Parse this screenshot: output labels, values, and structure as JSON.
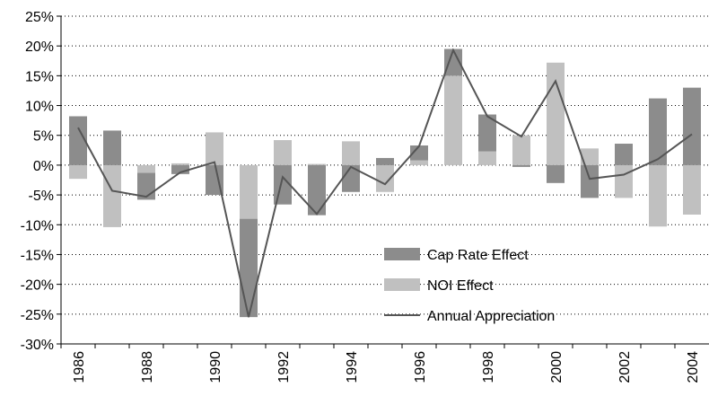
{
  "chart_data": {
    "type": "bar",
    "categories": [
      "1986",
      null,
      "1988",
      null,
      "1990",
      null,
      "1992",
      null,
      "1994",
      null,
      "1996",
      null,
      "1998",
      null,
      "2000",
      null,
      "2002",
      null,
      "2004"
    ],
    "stacked": true,
    "series": [
      {
        "name": "NOI Effect",
        "color": "#c0c0c0",
        "values": [
          -2.3,
          -10.4,
          -1.3,
          0.3,
          5.5,
          -9,
          4.2,
          0.2,
          4,
          -4.5,
          0.8,
          15,
          2.3,
          5,
          17.2,
          2.8,
          -5.5,
          -10.3,
          -8.3
        ]
      },
      {
        "name": "Cap Rate Effect",
        "color": "#8c8c8c",
        "values": [
          8.2,
          5.8,
          -4.5,
          -1.5,
          -5,
          -16.5,
          -6.6,
          -8.4,
          -4.5,
          1.2,
          2.5,
          4.5,
          6.2,
          -0.3,
          -3,
          -5.5,
          3.6,
          11.2,
          13
        ]
      },
      {
        "name": "Annual Appreciation",
        "type": "line",
        "color": "#555555",
        "values": [
          6.3,
          -4.3,
          -5.3,
          -1.2,
          0.5,
          -25.5,
          -2,
          -8.2,
          -0.3,
          -3.2,
          3.2,
          19.3,
          8.2,
          4.8,
          14.1,
          -2.3,
          -1.6,
          1,
          5.2
        ]
      }
    ],
    "legend_order": [
      1,
      0,
      2
    ],
    "ylim": [
      -30,
      25
    ],
    "yticks": [
      {
        "value": -30,
        "label": "-30%"
      },
      {
        "value": -25,
        "label": "-25%"
      },
      {
        "value": -20,
        "label": "-20%"
      },
      {
        "value": -15,
        "label": "-15%"
      },
      {
        "value": -10,
        "label": "-10%"
      },
      {
        "value": -5,
        "label": "-5%"
      },
      {
        "value": 0,
        "label": "0%"
      },
      {
        "value": 5,
        "label": "5%"
      },
      {
        "value": 10,
        "label": "10%"
      },
      {
        "value": 15,
        "label": "15%"
      },
      {
        "value": 20,
        "label": "20%"
      },
      {
        "value": 25,
        "label": "25%"
      }
    ],
    "grid": true
  }
}
